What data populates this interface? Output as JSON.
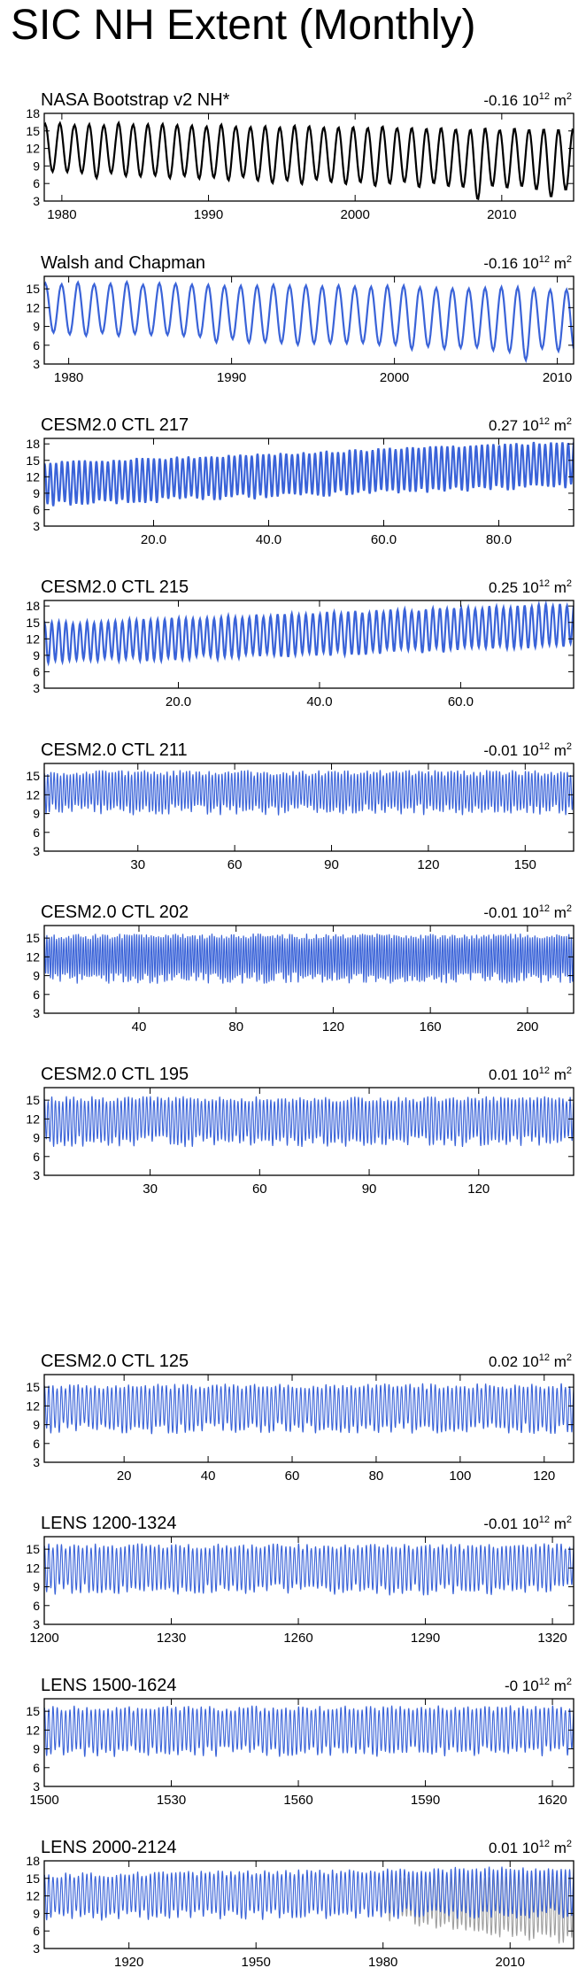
{
  "title": "SIC NH Extent (Monthly)",
  "unit_prefix_text": "10",
  "unit_exponent_text": "12",
  "unit_suffix_text": "m",
  "unit_suffix_exponent_text": "2",
  "colors": {
    "observations": "#000000",
    "model": "#3a63d8",
    "obs_overlay": "#9e9e9e"
  },
  "chart_data": [
    {
      "type": "line",
      "title": "NASA Bootstrap v2 NH*",
      "trend": "-0.16",
      "x_range": [
        1978.8,
        2014.9
      ],
      "xticks": [
        1980,
        1990,
        2000,
        2010
      ],
      "xtick_labels": [
        "1980",
        "1990",
        "2000",
        "2010"
      ],
      "ylim": [
        3,
        18
      ],
      "yticks": [
        3,
        6,
        9,
        12,
        15,
        18
      ],
      "ytick_labels": [
        "3",
        "6",
        "9",
        "12",
        "15",
        "18"
      ],
      "series": [
        {
          "color": "#000000",
          "seasonal_max_start": 16.3,
          "seasonal_max_end": 15.2,
          "seasonal_min_start": 7.6,
          "seasonal_min_end": 4.8,
          "drop_years": [
            2007,
            2012
          ]
        }
      ]
    },
    {
      "type": "line",
      "title": "Walsh and Chapman",
      "trend": "-0.16",
      "x_range": [
        1978.5,
        2011
      ],
      "xticks": [
        1980,
        1990,
        2000,
        2010
      ],
      "xtick_labels": [
        "1980",
        "1990",
        "2000",
        "2010"
      ],
      "ylim": [
        3,
        17
      ],
      "yticks": [
        3,
        6,
        9,
        12,
        15
      ],
      "ytick_labels": [
        "3",
        "6",
        "9",
        "12",
        "15"
      ],
      "series": [
        {
          "color": "#3a63d8",
          "seasonal_max_start": 16.0,
          "seasonal_max_end": 15.0,
          "seasonal_min_start": 7.8,
          "seasonal_min_end": 4.8,
          "drop_years": [
            2007
          ]
        }
      ]
    },
    {
      "type": "line",
      "title": "CESM2.0 CTL 217",
      "trend": "0.27",
      "x_range": [
        1,
        93
      ],
      "xticks": [
        20,
        40,
        60,
        80
      ],
      "xtick_labels": [
        "20.0",
        "40.0",
        "60.0",
        "80.0"
      ],
      "ylim": [
        3,
        19
      ],
      "yticks": [
        3,
        6,
        9,
        12,
        15,
        18
      ],
      "ytick_labels": [
        "3",
        "6",
        "9",
        "12",
        "15",
        "18"
      ],
      "series": [
        {
          "color": "#3a63d8",
          "seasonal_max_start": 14.5,
          "seasonal_max_end": 18.4,
          "seasonal_min_start": 7.0,
          "seasonal_min_end": 10.5
        }
      ]
    },
    {
      "type": "line",
      "title": "CESM2.0 CTL 215",
      "trend": "0.25",
      "x_range": [
        1,
        76
      ],
      "xticks": [
        20,
        40,
        60
      ],
      "xtick_labels": [
        "20.0",
        "40.0",
        "60.0"
      ],
      "ylim": [
        3,
        19
      ],
      "yticks": [
        3,
        6,
        9,
        12,
        15,
        18
      ],
      "ytick_labels": [
        "3",
        "6",
        "9",
        "12",
        "15",
        "18"
      ],
      "series": [
        {
          "color": "#3a63d8",
          "seasonal_max_start": 14.8,
          "seasonal_max_end": 18.3,
          "seasonal_min_start": 7.8,
          "seasonal_min_end": 10.8
        }
      ]
    },
    {
      "type": "line",
      "title": "CESM2.0 CTL 211",
      "trend": "-0.01",
      "x_range": [
        1,
        165
      ],
      "xticks": [
        30,
        60,
        90,
        120,
        150
      ],
      "xtick_labels": [
        "30",
        "60",
        "90",
        "120",
        "150"
      ],
      "ylim": [
        3,
        17
      ],
      "yticks": [
        3,
        6,
        9,
        12,
        15
      ],
      "ytick_labels": [
        "3",
        "6",
        "9",
        "12",
        "15"
      ],
      "series": [
        {
          "color": "#3a63d8",
          "seasonal_max_start": 15.5,
          "seasonal_max_end": 15.5,
          "seasonal_min_start": 9.6,
          "seasonal_min_end": 9.6
        }
      ]
    },
    {
      "type": "line",
      "title": "CESM2.0 CTL 202",
      "trend": "-0.01",
      "x_range": [
        1,
        219
      ],
      "xticks": [
        40,
        80,
        120,
        160,
        200
      ],
      "xtick_labels": [
        "40",
        "80",
        "120",
        "160",
        "200"
      ],
      "ylim": [
        3,
        17
      ],
      "yticks": [
        3,
        6,
        9,
        12,
        15
      ],
      "ytick_labels": [
        "3",
        "6",
        "9",
        "12",
        "15"
      ],
      "series": [
        {
          "color": "#3a63d8",
          "seasonal_max_start": 15.3,
          "seasonal_max_end": 15.3,
          "seasonal_min_start": 8.6,
          "seasonal_min_end": 8.6
        }
      ]
    },
    {
      "type": "line",
      "title": "CESM2.0 CTL 195",
      "trend": "0.01",
      "x_range": [
        1,
        146
      ],
      "xticks": [
        30,
        60,
        90,
        120
      ],
      "xtick_labels": [
        "30",
        "60",
        "90",
        "120"
      ],
      "ylim": [
        3,
        17
      ],
      "yticks": [
        3,
        6,
        9,
        12,
        15
      ],
      "ytick_labels": [
        "3",
        "6",
        "9",
        "12",
        "15"
      ],
      "series": [
        {
          "color": "#3a63d8",
          "seasonal_max_start": 15.2,
          "seasonal_max_end": 15.2,
          "seasonal_min_start": 8.4,
          "seasonal_min_end": 8.4
        }
      ]
    },
    {
      "type": "line",
      "title": "CESM2.0 CTL 125",
      "trend": "0.02",
      "x_range": [
        1,
        127
      ],
      "xticks": [
        20,
        40,
        60,
        80,
        100,
        120
      ],
      "xtick_labels": [
        "20",
        "40",
        "60",
        "80",
        "100",
        "120"
      ],
      "ylim": [
        3,
        17
      ],
      "yticks": [
        3,
        6,
        9,
        12,
        15
      ],
      "ytick_labels": [
        "3",
        "6",
        "9",
        "12",
        "15"
      ],
      "series": [
        {
          "color": "#3a63d8",
          "seasonal_max_start": 15.2,
          "seasonal_max_end": 15.2,
          "seasonal_min_start": 8.4,
          "seasonal_min_end": 8.4
        }
      ]
    },
    {
      "type": "line",
      "title": "LENS 1200-1324",
      "trend": "-0.01",
      "x_range": [
        1200,
        1325
      ],
      "xticks": [
        1200,
        1230,
        1260,
        1290,
        1320
      ],
      "xtick_labels": [
        "1200",
        "1230",
        "1260",
        "1290",
        "1320"
      ],
      "ylim": [
        3,
        17
      ],
      "yticks": [
        3,
        6,
        9,
        12,
        15
      ],
      "ytick_labels": [
        "3",
        "6",
        "9",
        "12",
        "15"
      ],
      "series": [
        {
          "color": "#3a63d8",
          "seasonal_max_start": 15.5,
          "seasonal_max_end": 15.5,
          "seasonal_min_start": 8.5,
          "seasonal_min_end": 8.5
        }
      ]
    },
    {
      "type": "line",
      "title": "LENS 1500-1624",
      "trend": "-0",
      "x_range": [
        1500,
        1625
      ],
      "xticks": [
        1500,
        1530,
        1560,
        1590,
        1620
      ],
      "xtick_labels": [
        "1500",
        "1530",
        "1560",
        "1590",
        "1620"
      ],
      "ylim": [
        3,
        17
      ],
      "yticks": [
        3,
        6,
        9,
        12,
        15
      ],
      "ytick_labels": [
        "3",
        "6",
        "9",
        "12",
        "15"
      ],
      "series": [
        {
          "color": "#3a63d8",
          "seasonal_max_start": 15.5,
          "seasonal_max_end": 15.5,
          "seasonal_min_start": 8.6,
          "seasonal_min_end": 8.6
        }
      ]
    },
    {
      "type": "line",
      "title": "LENS 2000-2124",
      "trend": "0.01",
      "x_range": [
        1900,
        2025
      ],
      "xticks": [
        1920,
        1950,
        1980,
        2010
      ],
      "xtick_labels": [
        "1920",
        "1950",
        "1980",
        "2010"
      ],
      "ylim": [
        3,
        18
      ],
      "yticks": [
        3,
        6,
        9,
        12,
        15,
        18
      ],
      "ytick_labels": [
        "3",
        "6",
        "9",
        "12",
        "15",
        "18"
      ],
      "series": [
        {
          "color": "#9e9e9e",
          "seasonal_max_start": 15.5,
          "seasonal_max_end": 15.5,
          "seasonal_min_start": 8.5,
          "seasonal_min_end": 4.0,
          "start_year": 1979
        },
        {
          "color": "#3a63d8",
          "seasonal_max_start": 15.5,
          "seasonal_max_end": 16.8,
          "seasonal_min_start": 8.6,
          "seasonal_min_end": 9.0
        }
      ]
    }
  ]
}
